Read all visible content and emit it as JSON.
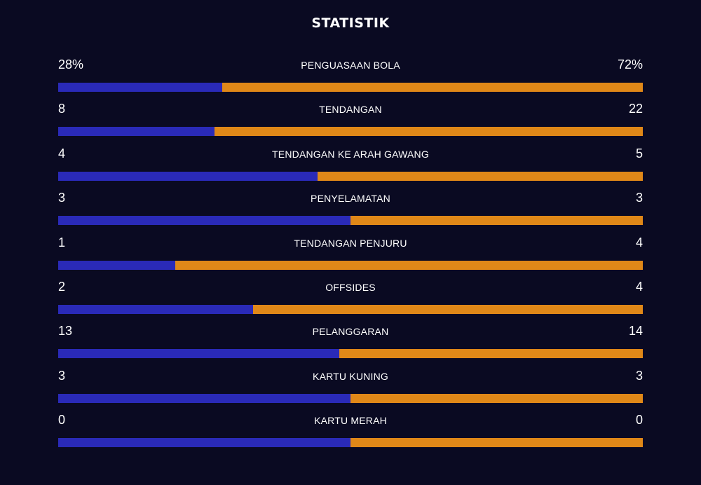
{
  "title": "STATISTIK",
  "colors": {
    "background": "#0a0a22",
    "home": "#2a2ab8",
    "away": "#e08818",
    "text": "#ffffff"
  },
  "stats": [
    {
      "label": "PENGUASAAN BOLA",
      "home": "28%",
      "away": "72%",
      "home_share": 0.28
    },
    {
      "label": "TENDANGAN",
      "home": "8",
      "away": "22",
      "home_share": 0.267
    },
    {
      "label": "TENDANGAN KE ARAH GAWANG",
      "home": "4",
      "away": "5",
      "home_share": 0.444
    },
    {
      "label": "PENYELAMATAN",
      "home": "3",
      "away": "3",
      "home_share": 0.5
    },
    {
      "label": "TENDANGAN PENJURU",
      "home": "1",
      "away": "4",
      "home_share": 0.2
    },
    {
      "label": "OFFSIDES",
      "home": "2",
      "away": "4",
      "home_share": 0.333
    },
    {
      "label": "PELANGGARAN",
      "home": "13",
      "away": "14",
      "home_share": 0.481
    },
    {
      "label": "KARTU KUNING",
      "home": "3",
      "away": "3",
      "home_share": 0.5
    },
    {
      "label": "KARTU MERAH",
      "home": "0",
      "away": "0",
      "home_share": 0.5
    }
  ]
}
